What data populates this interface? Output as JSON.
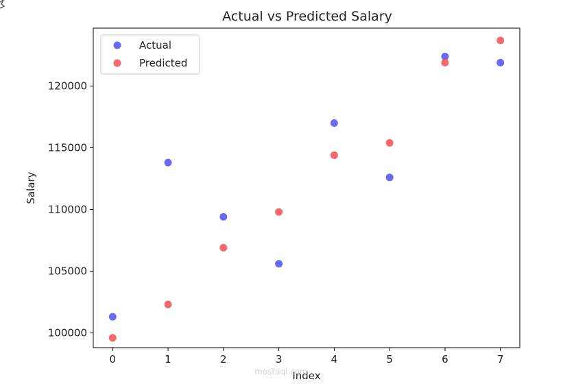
{
  "chart_data": {
    "type": "scatter",
    "title": "Actual vs Predicted Salary",
    "xlabel": "Index",
    "ylabel": "Salary",
    "xlim": [
      -0.35,
      7.35
    ],
    "ylim": [
      98800,
      124700
    ],
    "x_ticks": [
      0,
      1,
      2,
      3,
      4,
      5,
      6,
      7
    ],
    "y_ticks": [
      100000,
      105000,
      110000,
      115000,
      120000
    ],
    "grid": false,
    "legend_position": "top-left",
    "series": [
      {
        "name": "Actual",
        "color": "#4f4ff2",
        "x": [
          0,
          1,
          2,
          3,
          4,
          5,
          6,
          7
        ],
        "y": [
          101300,
          113800,
          109400,
          105600,
          117000,
          112600,
          122400,
          121900
        ]
      },
      {
        "name": "Predicted",
        "color": "#f24f4f",
        "x": [
          0,
          1,
          2,
          3,
          4,
          5,
          6,
          7
        ],
        "y": [
          99600,
          102300,
          106900,
          109800,
          114400,
          115400,
          121900,
          123700
        ]
      }
    ]
  },
  "watermark": {
    "text": "mostaql.com"
  }
}
